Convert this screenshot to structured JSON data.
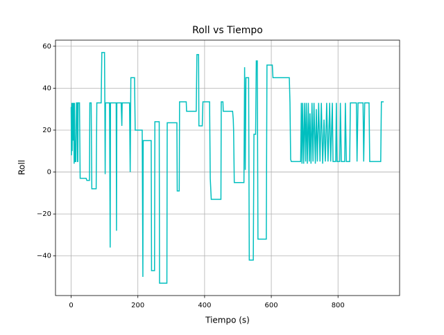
{
  "chart_data": {
    "type": "line",
    "title": "Roll vs Tiempo",
    "x_label": "Tiempo (s)",
    "y_label": "Roll",
    "grid": true,
    "xlim": [
      -46.9,
      984.6
    ],
    "ylim": [
      -58.9,
      62.9
    ],
    "xticks": [
      0,
      200,
      400,
      600,
      800
    ],
    "yticks": [
      {
        "value": -40,
        "label": "−40"
      },
      {
        "value": -20,
        "label": "−20"
      },
      0,
      20,
      40,
      60
    ],
    "series": [
      {
        "color": "#00bfbf",
        "x": [
          0,
          1,
          2,
          3,
          4,
          6,
          7,
          9,
          10,
          12,
          14,
          16,
          18,
          19,
          20,
          21,
          25,
          27,
          45,
          47,
          55,
          56,
          60,
          62,
          75,
          77,
          90,
          92,
          100,
          101,
          102,
          103,
          115,
          117,
          118,
          135,
          136,
          137,
          150,
          152,
          153,
          175,
          177,
          179,
          190,
          192,
          213,
          215,
          216,
          240,
          241,
          250,
          251,
          264,
          265,
          287,
          288,
          317,
          318,
          324,
          325,
          345,
          346,
          375,
          377,
          382,
          383,
          393,
          395,
          415,
          417,
          420,
          449,
          450,
          455,
          456,
          484,
          486,
          487,
          489,
          518,
          520,
          522,
          524,
          532,
          534,
          546,
          548,
          553,
          555,
          558,
          560,
          585,
          587,
          603,
          605,
          654,
          656,
          658,
          660,
          688,
          690,
          692,
          694,
          697,
          700,
          703,
          705,
          708,
          711,
          714,
          716,
          719,
          722,
          725,
          728,
          732,
          735,
          738,
          742,
          746,
          750,
          754,
          758,
          762,
          766,
          770,
          775,
          778,
          783,
          785,
          793,
          795,
          797,
          805,
          807,
          810,
          820,
          822,
          825,
          835,
          837,
          855,
          857,
          860,
          875,
          877,
          880,
          893,
          895,
          928,
          930,
          937
        ],
        "values": [
          31,
          8,
          33,
          10,
          33,
          15,
          33,
          4,
          33,
          5,
          5,
          33,
          33,
          5,
          5,
          33,
          33,
          -3,
          -3,
          -4,
          -4,
          33,
          33,
          -8,
          -8,
          33,
          33,
          57,
          57,
          33,
          -1,
          33,
          33,
          -36,
          33,
          33,
          -28,
          33,
          33,
          22,
          33,
          33,
          0,
          45,
          45,
          20,
          20,
          -50,
          15,
          15,
          -47,
          -47,
          24,
          24,
          -53,
          -53,
          23.5,
          23.5,
          -9,
          -9,
          33.5,
          33.5,
          29,
          29,
          56,
          56,
          22,
          22,
          33.5,
          33.5,
          -3,
          -13,
          -13,
          33.5,
          33.5,
          29,
          29,
          25,
          20,
          -5,
          -5,
          50,
          1,
          45,
          45,
          -42,
          -42,
          18,
          18,
          53,
          53,
          -32,
          -32,
          51,
          51,
          45,
          45,
          33,
          6,
          5,
          5,
          33,
          4,
          33,
          4,
          33,
          5,
          33,
          4,
          33,
          5,
          28,
          4,
          33,
          5,
          33,
          4,
          30,
          5,
          33,
          5,
          33,
          4,
          25,
          5,
          33,
          5,
          33,
          5,
          33,
          5,
          5,
          33,
          5,
          5,
          33,
          5,
          5,
          33,
          5,
          5,
          33,
          33,
          5,
          33,
          33,
          5,
          33,
          33,
          5,
          5,
          33.5,
          33.5
        ]
      }
    ]
  }
}
